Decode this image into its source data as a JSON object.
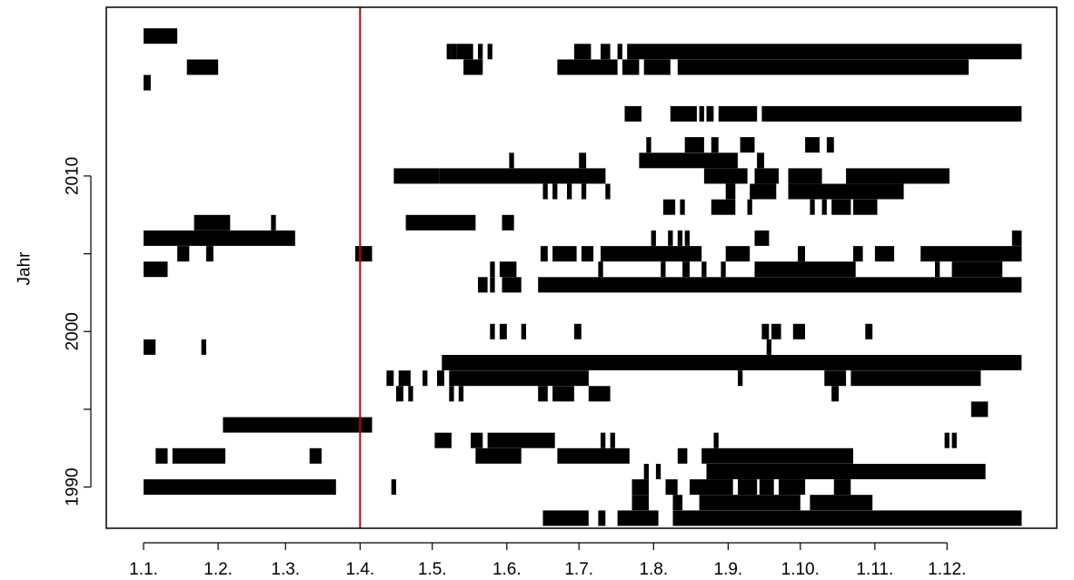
{
  "chart_data": {
    "type": "timeline",
    "title": "",
    "xlabel": "",
    "ylabel": "Jahr",
    "x_unit": "day-of-year",
    "x_ticks": [
      {
        "label": "1.1.",
        "day": 1
      },
      {
        "label": "1.2.",
        "day": 32
      },
      {
        "label": "1.3.",
        "day": 60
      },
      {
        "label": "1.4.",
        "day": 91
      },
      {
        "label": "1.5.",
        "day": 121
      },
      {
        "label": "1.6.",
        "day": 152
      },
      {
        "label": "1.7.",
        "day": 182
      },
      {
        "label": "1.8.",
        "day": 213
      },
      {
        "label": "1.9.",
        "day": 244
      },
      {
        "label": "1.10.",
        "day": 274
      },
      {
        "label": "1.11.",
        "day": 305
      },
      {
        "label": "1.12.",
        "day": 335
      }
    ],
    "xlim": [
      -14.5,
      380.6
    ],
    "ylim": [
      1987.35,
      2020.85
    ],
    "y_ticks": [
      1990,
      1995,
      2000,
      2005,
      2010
    ],
    "y_tick_labels": [
      "1990",
      "",
      "2000",
      "",
      "2010"
    ],
    "reference_line": {
      "day": 91,
      "color": "#cc0000"
    },
    "bar_color": "#000000",
    "segments": [
      [
        1988,
        167,
        185
      ],
      [
        1988,
        190,
        192
      ],
      [
        1988,
        198,
        214
      ],
      [
        1988,
        221,
        365
      ],
      [
        1989,
        204,
        210
      ],
      [
        1989,
        221,
        224
      ],
      [
        1989,
        232,
        273
      ],
      [
        1989,
        278,
        303
      ],
      [
        1990,
        1,
        80
      ],
      [
        1990,
        104,
        105
      ],
      [
        1990,
        204,
        210
      ],
      [
        1990,
        218,
        222
      ],
      [
        1990,
        228,
        245
      ],
      [
        1990,
        248,
        255
      ],
      [
        1990,
        257,
        262
      ],
      [
        1990,
        265,
        275
      ],
      [
        1990,
        288,
        294
      ],
      [
        1991,
        209,
        210
      ],
      [
        1991,
        214,
        215
      ],
      [
        1991,
        235,
        350
      ],
      [
        1992,
        6,
        10
      ],
      [
        1992,
        13,
        34
      ],
      [
        1992,
        70,
        74
      ],
      [
        1992,
        139,
        157
      ],
      [
        1992,
        173,
        202
      ],
      [
        1992,
        223,
        226
      ],
      [
        1992,
        233,
        295
      ],
      [
        1993,
        122,
        128
      ],
      [
        1993,
        137,
        141
      ],
      [
        1993,
        144,
        171
      ],
      [
        1993,
        191,
        192
      ],
      [
        1993,
        195,
        196
      ],
      [
        1993,
        238,
        239
      ],
      [
        1993,
        334,
        335
      ],
      [
        1993,
        337,
        338
      ],
      [
        1994,
        34,
        95
      ],
      [
        1995,
        345,
        351
      ],
      [
        1996,
        106,
        108
      ],
      [
        1996,
        111,
        112
      ],
      [
        1996,
        128,
        129
      ],
      [
        1996,
        132,
        133
      ],
      [
        1996,
        165,
        168
      ],
      [
        1996,
        171,
        179
      ],
      [
        1996,
        186,
        194
      ],
      [
        1996,
        287,
        289
      ],
      [
        1997,
        102,
        104
      ],
      [
        1997,
        107,
        111
      ],
      [
        1997,
        117,
        118
      ],
      [
        1997,
        123,
        125
      ],
      [
        1997,
        128,
        185
      ],
      [
        1997,
        248,
        249
      ],
      [
        1997,
        284,
        292
      ],
      [
        1997,
        295,
        348
      ],
      [
        1998,
        125,
        365
      ],
      [
        1999,
        1,
        5
      ],
      [
        1999,
        25,
        26
      ],
      [
        1999,
        260,
        261
      ],
      [
        2000,
        145,
        146
      ],
      [
        2000,
        149,
        151
      ],
      [
        2000,
        158,
        159
      ],
      [
        2000,
        180,
        182
      ],
      [
        2000,
        258,
        260
      ],
      [
        2000,
        262,
        265
      ],
      [
        2000,
        271,
        275
      ],
      [
        2000,
        301,
        303
      ],
      [
        2003,
        140,
        143
      ],
      [
        2003,
        145,
        146
      ],
      [
        2003,
        150,
        157
      ],
      [
        2003,
        165,
        365
      ],
      [
        2004,
        1,
        10
      ],
      [
        2004,
        145,
        146
      ],
      [
        2004,
        149,
        155
      ],
      [
        2004,
        190,
        191
      ],
      [
        2004,
        216,
        217
      ],
      [
        2004,
        225,
        227
      ],
      [
        2004,
        233,
        234
      ],
      [
        2004,
        241,
        242
      ],
      [
        2004,
        255,
        296
      ],
      [
        2004,
        330,
        331
      ],
      [
        2004,
        337,
        357
      ],
      [
        2005,
        15,
        19
      ],
      [
        2005,
        27,
        29
      ],
      [
        2005,
        89,
        95
      ],
      [
        2005,
        166,
        168
      ],
      [
        2005,
        171,
        180
      ],
      [
        2005,
        183,
        187
      ],
      [
        2005,
        191,
        232
      ],
      [
        2005,
        243,
        252
      ],
      [
        2005,
        273,
        275
      ],
      [
        2005,
        296,
        299
      ],
      [
        2005,
        305,
        312
      ],
      [
        2005,
        324,
        365
      ],
      [
        2006,
        1,
        63
      ],
      [
        2006,
        212,
        213
      ],
      [
        2006,
        219,
        220
      ],
      [
        2006,
        223,
        224
      ],
      [
        2006,
        226,
        227
      ],
      [
        2006,
        255,
        260
      ],
      [
        2006,
        362,
        365
      ],
      [
        2007,
        22,
        36
      ],
      [
        2007,
        54,
        55
      ],
      [
        2007,
        110,
        138
      ],
      [
        2007,
        150,
        154
      ],
      [
        2008,
        217,
        221
      ],
      [
        2008,
        224,
        225
      ],
      [
        2008,
        237,
        246
      ],
      [
        2008,
        252,
        253
      ],
      [
        2008,
        278,
        279
      ],
      [
        2008,
        283,
        284
      ],
      [
        2008,
        287,
        294
      ],
      [
        2008,
        296,
        305
      ],
      [
        2009,
        167,
        168
      ],
      [
        2009,
        171,
        172
      ],
      [
        2009,
        177,
        178
      ],
      [
        2009,
        183,
        184
      ],
      [
        2009,
        193,
        194
      ],
      [
        2009,
        243,
        246
      ],
      [
        2009,
        253,
        263
      ],
      [
        2009,
        269,
        316
      ],
      [
        2010,
        105,
        123
      ],
      [
        2010,
        124,
        192
      ],
      [
        2010,
        234,
        251
      ],
      [
        2010,
        255,
        264
      ],
      [
        2010,
        269,
        282
      ],
      [
        2010,
        293,
        335
      ],
      [
        2011,
        153,
        154
      ],
      [
        2011,
        182,
        184
      ],
      [
        2011,
        207,
        247
      ],
      [
        2011,
        256,
        258
      ],
      [
        2012,
        210,
        211
      ],
      [
        2012,
        226,
        233
      ],
      [
        2012,
        237,
        239
      ],
      [
        2012,
        249,
        254
      ],
      [
        2012,
        276,
        281
      ],
      [
        2012,
        285,
        287
      ],
      [
        2014,
        201,
        207
      ],
      [
        2014,
        220,
        230
      ],
      [
        2014,
        232,
        233
      ],
      [
        2014,
        235,
        237
      ],
      [
        2014,
        240,
        255
      ],
      [
        2014,
        258,
        365
      ],
      [
        2016,
        1,
        3
      ],
      [
        2017,
        19,
        31
      ],
      [
        2017,
        134,
        141
      ],
      [
        2017,
        173,
        197
      ],
      [
        2017,
        200,
        206
      ],
      [
        2017,
        209,
        219
      ],
      [
        2017,
        223,
        240
      ],
      [
        2017,
        241,
        343
      ],
      [
        2018,
        127,
        128
      ],
      [
        2018,
        129,
        130
      ],
      [
        2018,
        131,
        137
      ],
      [
        2018,
        140,
        141
      ],
      [
        2018,
        144,
        145
      ],
      [
        2018,
        180,
        186
      ],
      [
        2018,
        191,
        194
      ],
      [
        2018,
        198,
        199
      ],
      [
        2018,
        202,
        365
      ],
      [
        2019,
        1,
        14
      ]
    ]
  }
}
